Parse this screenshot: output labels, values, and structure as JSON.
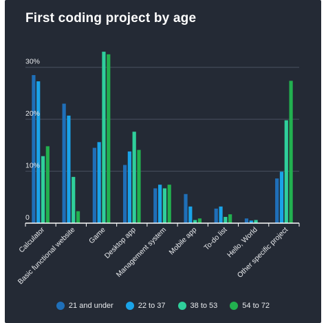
{
  "chart_data": {
    "type": "bar",
    "title": "First coding project by age",
    "xlabel": "",
    "ylabel": "",
    "ylim": [
      0,
      35
    ],
    "yticks": [
      {
        "value": 0,
        "label": "0"
      },
      {
        "value": 10,
        "label": "10%"
      },
      {
        "value": 20,
        "label": "20%"
      },
      {
        "value": 30,
        "label": "30%"
      }
    ],
    "grid": true,
    "legend_position": "bottom",
    "categories": [
      "Calculator",
      "Basic functional website",
      "Game",
      "Desktop app",
      "Management system",
      "Mobile app",
      "To-do list",
      "Hello, World",
      "Other specific project"
    ],
    "series": [
      {
        "name": "21 and under",
        "color": "#1f6fb8",
        "values": [
          28.5,
          23.0,
          14.5,
          11.2,
          6.7,
          5.6,
          2.8,
          0.9,
          8.6
        ]
      },
      {
        "name": "22 to 37",
        "color": "#1aa3e8",
        "values": [
          27.3,
          20.7,
          15.6,
          13.8,
          7.4,
          3.2,
          3.2,
          0.5,
          9.9
        ]
      },
      {
        "name": "38 to 53",
        "color": "#2fcf9b",
        "values": [
          12.9,
          8.9,
          33.0,
          17.6,
          6.7,
          0.6,
          1.2,
          0.6,
          19.8
        ]
      },
      {
        "name": "54 to 72",
        "color": "#22b04f",
        "values": [
          14.8,
          2.3,
          32.5,
          14.1,
          7.4,
          0.9,
          1.7,
          0.0,
          27.4
        ]
      }
    ]
  }
}
